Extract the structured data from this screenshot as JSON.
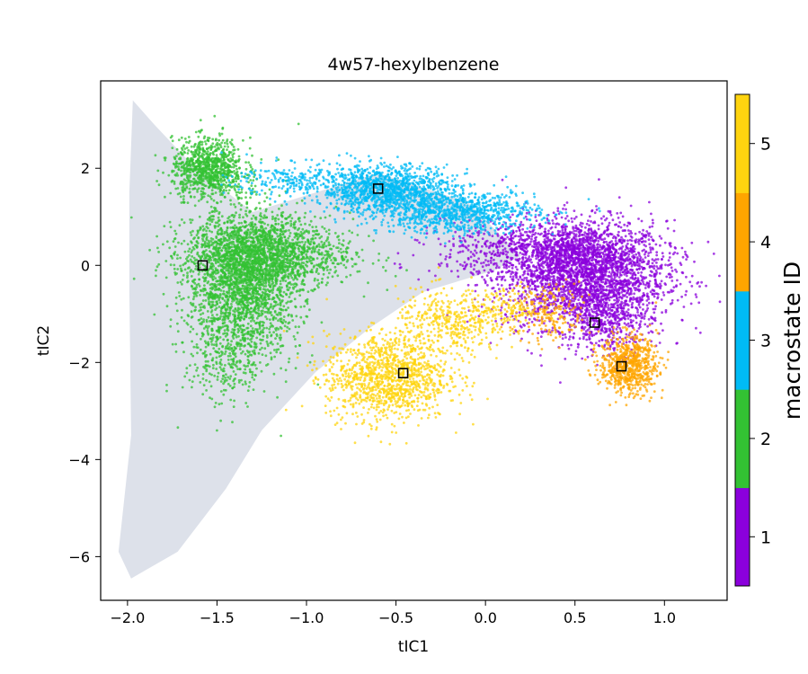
{
  "chart_data": {
    "type": "scatter",
    "title": "4w57-hexylbenzene",
    "xlabel": "tIC1",
    "ylabel": "tIC2",
    "xlim": [
      -2.15,
      1.35
    ],
    "ylim": [
      -6.9,
      3.8
    ],
    "xticks": [
      -2.0,
      -1.5,
      -1.0,
      -0.5,
      0.0,
      0.5,
      1.0
    ],
    "xtick_labels": [
      "−2.0",
      "−1.5",
      "−1.0",
      "−0.5",
      "0.0",
      "0.5",
      "1.0"
    ],
    "yticks": [
      2,
      0,
      -2,
      -4,
      -6
    ],
    "ytick_labels": [
      "2",
      "0",
      "−2",
      "−4",
      "−6"
    ],
    "grid": false,
    "background_density": {
      "color": "#dde1ea",
      "outline": [
        [
          -1.97,
          3.4
        ],
        [
          -1.85,
          2.9
        ],
        [
          -1.62,
          2.0
        ],
        [
          -1.3,
          1.1
        ],
        [
          -0.6,
          1.9
        ],
        [
          -0.1,
          1.3
        ],
        [
          0.2,
          0.2
        ],
        [
          0.05,
          -0.1
        ],
        [
          -0.35,
          -0.55
        ],
        [
          -0.65,
          -1.3
        ],
        [
          -0.95,
          -2.2
        ],
        [
          -1.25,
          -3.4
        ],
        [
          -1.45,
          -4.6
        ],
        [
          -1.72,
          -5.9
        ],
        [
          -1.98,
          -6.45
        ],
        [
          -2.05,
          -5.9
        ],
        [
          -1.98,
          -3.5
        ],
        [
          -1.99,
          -0.5
        ],
        [
          -1.99,
          1.5
        ]
      ]
    },
    "series": [
      {
        "macrostate": 1,
        "color": "#8b00dc",
        "clusters": [
          {
            "cx": 0.55,
            "cy": -0.2,
            "sx": 0.23,
            "sy": 0.55,
            "n": 2600
          },
          {
            "cx": 0.35,
            "cy": 0.3,
            "sx": 0.3,
            "sy": 0.3,
            "n": 900
          },
          {
            "cx": 0.7,
            "cy": -1.1,
            "sx": 0.12,
            "sy": 0.35,
            "n": 400
          }
        ]
      },
      {
        "macrostate": 2,
        "color": "#33c233",
        "clusters": [
          {
            "cx": -1.35,
            "cy": -0.3,
            "sx": 0.16,
            "sy": 0.75,
            "n": 2400
          },
          {
            "cx": -1.2,
            "cy": 0.25,
            "sx": 0.23,
            "sy": 0.35,
            "n": 1200
          },
          {
            "cx": -1.55,
            "cy": 2.0,
            "sx": 0.1,
            "sy": 0.3,
            "n": 900
          },
          {
            "cx": -1.45,
            "cy": -2.0,
            "sx": 0.12,
            "sy": 0.5,
            "n": 250
          }
        ]
      },
      {
        "macrostate": 3,
        "color": "#00bbf5",
        "clusters": [
          {
            "cx": -0.55,
            "cy": 1.55,
            "sx": 0.18,
            "sy": 0.25,
            "n": 1200
          },
          {
            "cx": -0.15,
            "cy": 1.1,
            "sx": 0.22,
            "sy": 0.22,
            "n": 900
          },
          {
            "cx": -1.05,
            "cy": 1.75,
            "sx": 0.18,
            "sy": 0.18,
            "n": 250
          }
        ]
      },
      {
        "macrostate": 4,
        "color": "#ffa500",
        "clusters": [
          {
            "cx": 0.8,
            "cy": -2.05,
            "sx": 0.08,
            "sy": 0.3,
            "n": 700
          },
          {
            "cx": 0.35,
            "cy": -1.0,
            "sx": 0.12,
            "sy": 0.3,
            "n": 200
          }
        ]
      },
      {
        "macrostate": 5,
        "color": "#ffd40f",
        "clusters": [
          {
            "cx": -0.55,
            "cy": -2.3,
            "sx": 0.17,
            "sy": 0.45,
            "n": 1200
          },
          {
            "cx": -0.2,
            "cy": -1.2,
            "sx": 0.15,
            "sy": 0.35,
            "n": 400
          },
          {
            "cx": 0.1,
            "cy": -0.9,
            "sx": 0.12,
            "sy": 0.2,
            "n": 150
          }
        ]
      }
    ],
    "centroids": [
      {
        "macrostate": 2,
        "x": -1.58,
        "y": 0.0
      },
      {
        "macrostate": 3,
        "x": -0.6,
        "y": 1.58
      },
      {
        "macrostate": 5,
        "x": -0.46,
        "y": -2.22
      },
      {
        "macrostate": 1,
        "x": 0.61,
        "y": -1.18
      },
      {
        "macrostate": 4,
        "x": 0.76,
        "y": -2.08
      }
    ],
    "colorbar": {
      "label": "macrostate ID",
      "range": [
        0.5,
        5.5
      ],
      "ticks": [
        "1",
        "2",
        "3",
        "4",
        "5"
      ],
      "colors": [
        "#8b00dc",
        "#33c233",
        "#00bbf5",
        "#ffa500",
        "#ffd40f"
      ]
    }
  }
}
